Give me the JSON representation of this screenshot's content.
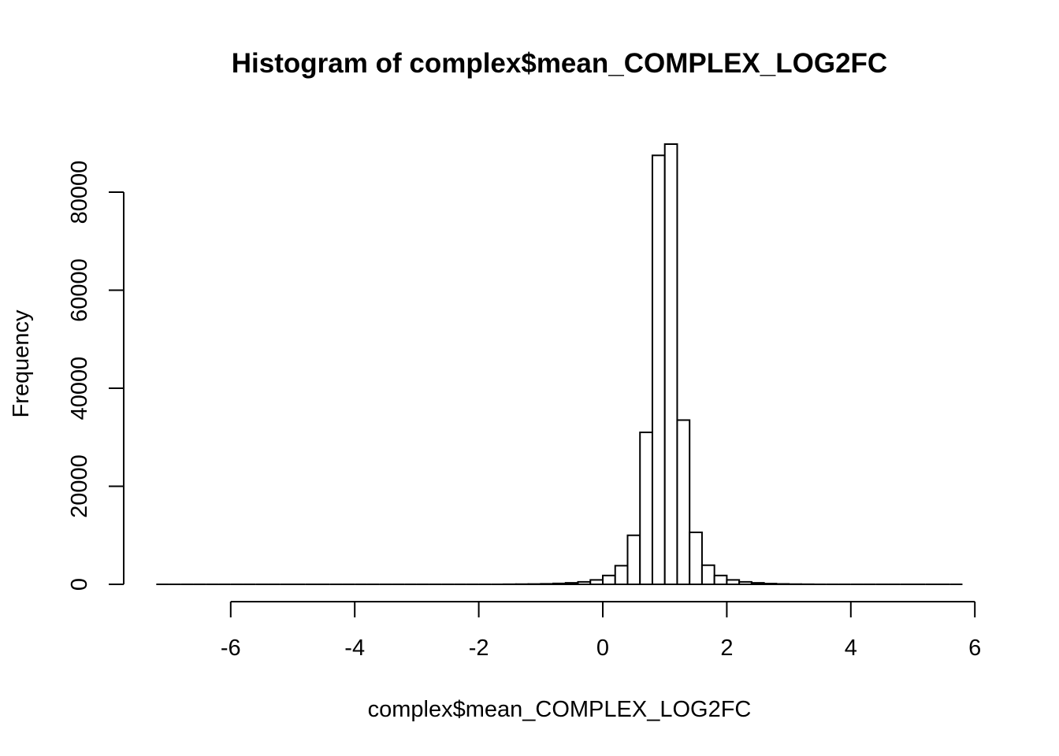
{
  "chart_data": {
    "type": "bar",
    "title": "Histogram of complex$mean_COMPLEX_LOG2FC",
    "xlabel": "complex$mean_COMPLEX_LOG2FC",
    "ylabel": "Frequency",
    "xlim": [
      -7.2,
      5.8
    ],
    "ylim": [
      0,
      90000
    ],
    "xticks": [
      -6,
      -4,
      -2,
      0,
      2,
      4,
      6
    ],
    "yticks": [
      0,
      20000,
      40000,
      60000,
      80000
    ],
    "bin_width": 0.2,
    "bins_start": -7.2,
    "values": [
      0,
      0,
      0,
      0,
      0,
      0,
      0,
      0,
      0,
      0,
      0,
      0,
      0,
      0,
      0,
      0,
      0,
      0,
      0,
      0,
      0,
      0,
      0,
      0,
      0,
      0,
      0,
      0,
      20,
      40,
      60,
      100,
      180,
      300,
      500,
      900,
      1800,
      3800,
      10000,
      31000,
      87500,
      89800,
      33500,
      10600,
      3900,
      1800,
      900,
      500,
      300,
      150,
      80,
      40,
      20,
      0,
      0,
      0,
      0,
      0,
      0,
      0,
      0,
      0,
      0,
      0,
      0
    ],
    "grid": false,
    "legend": "none"
  }
}
